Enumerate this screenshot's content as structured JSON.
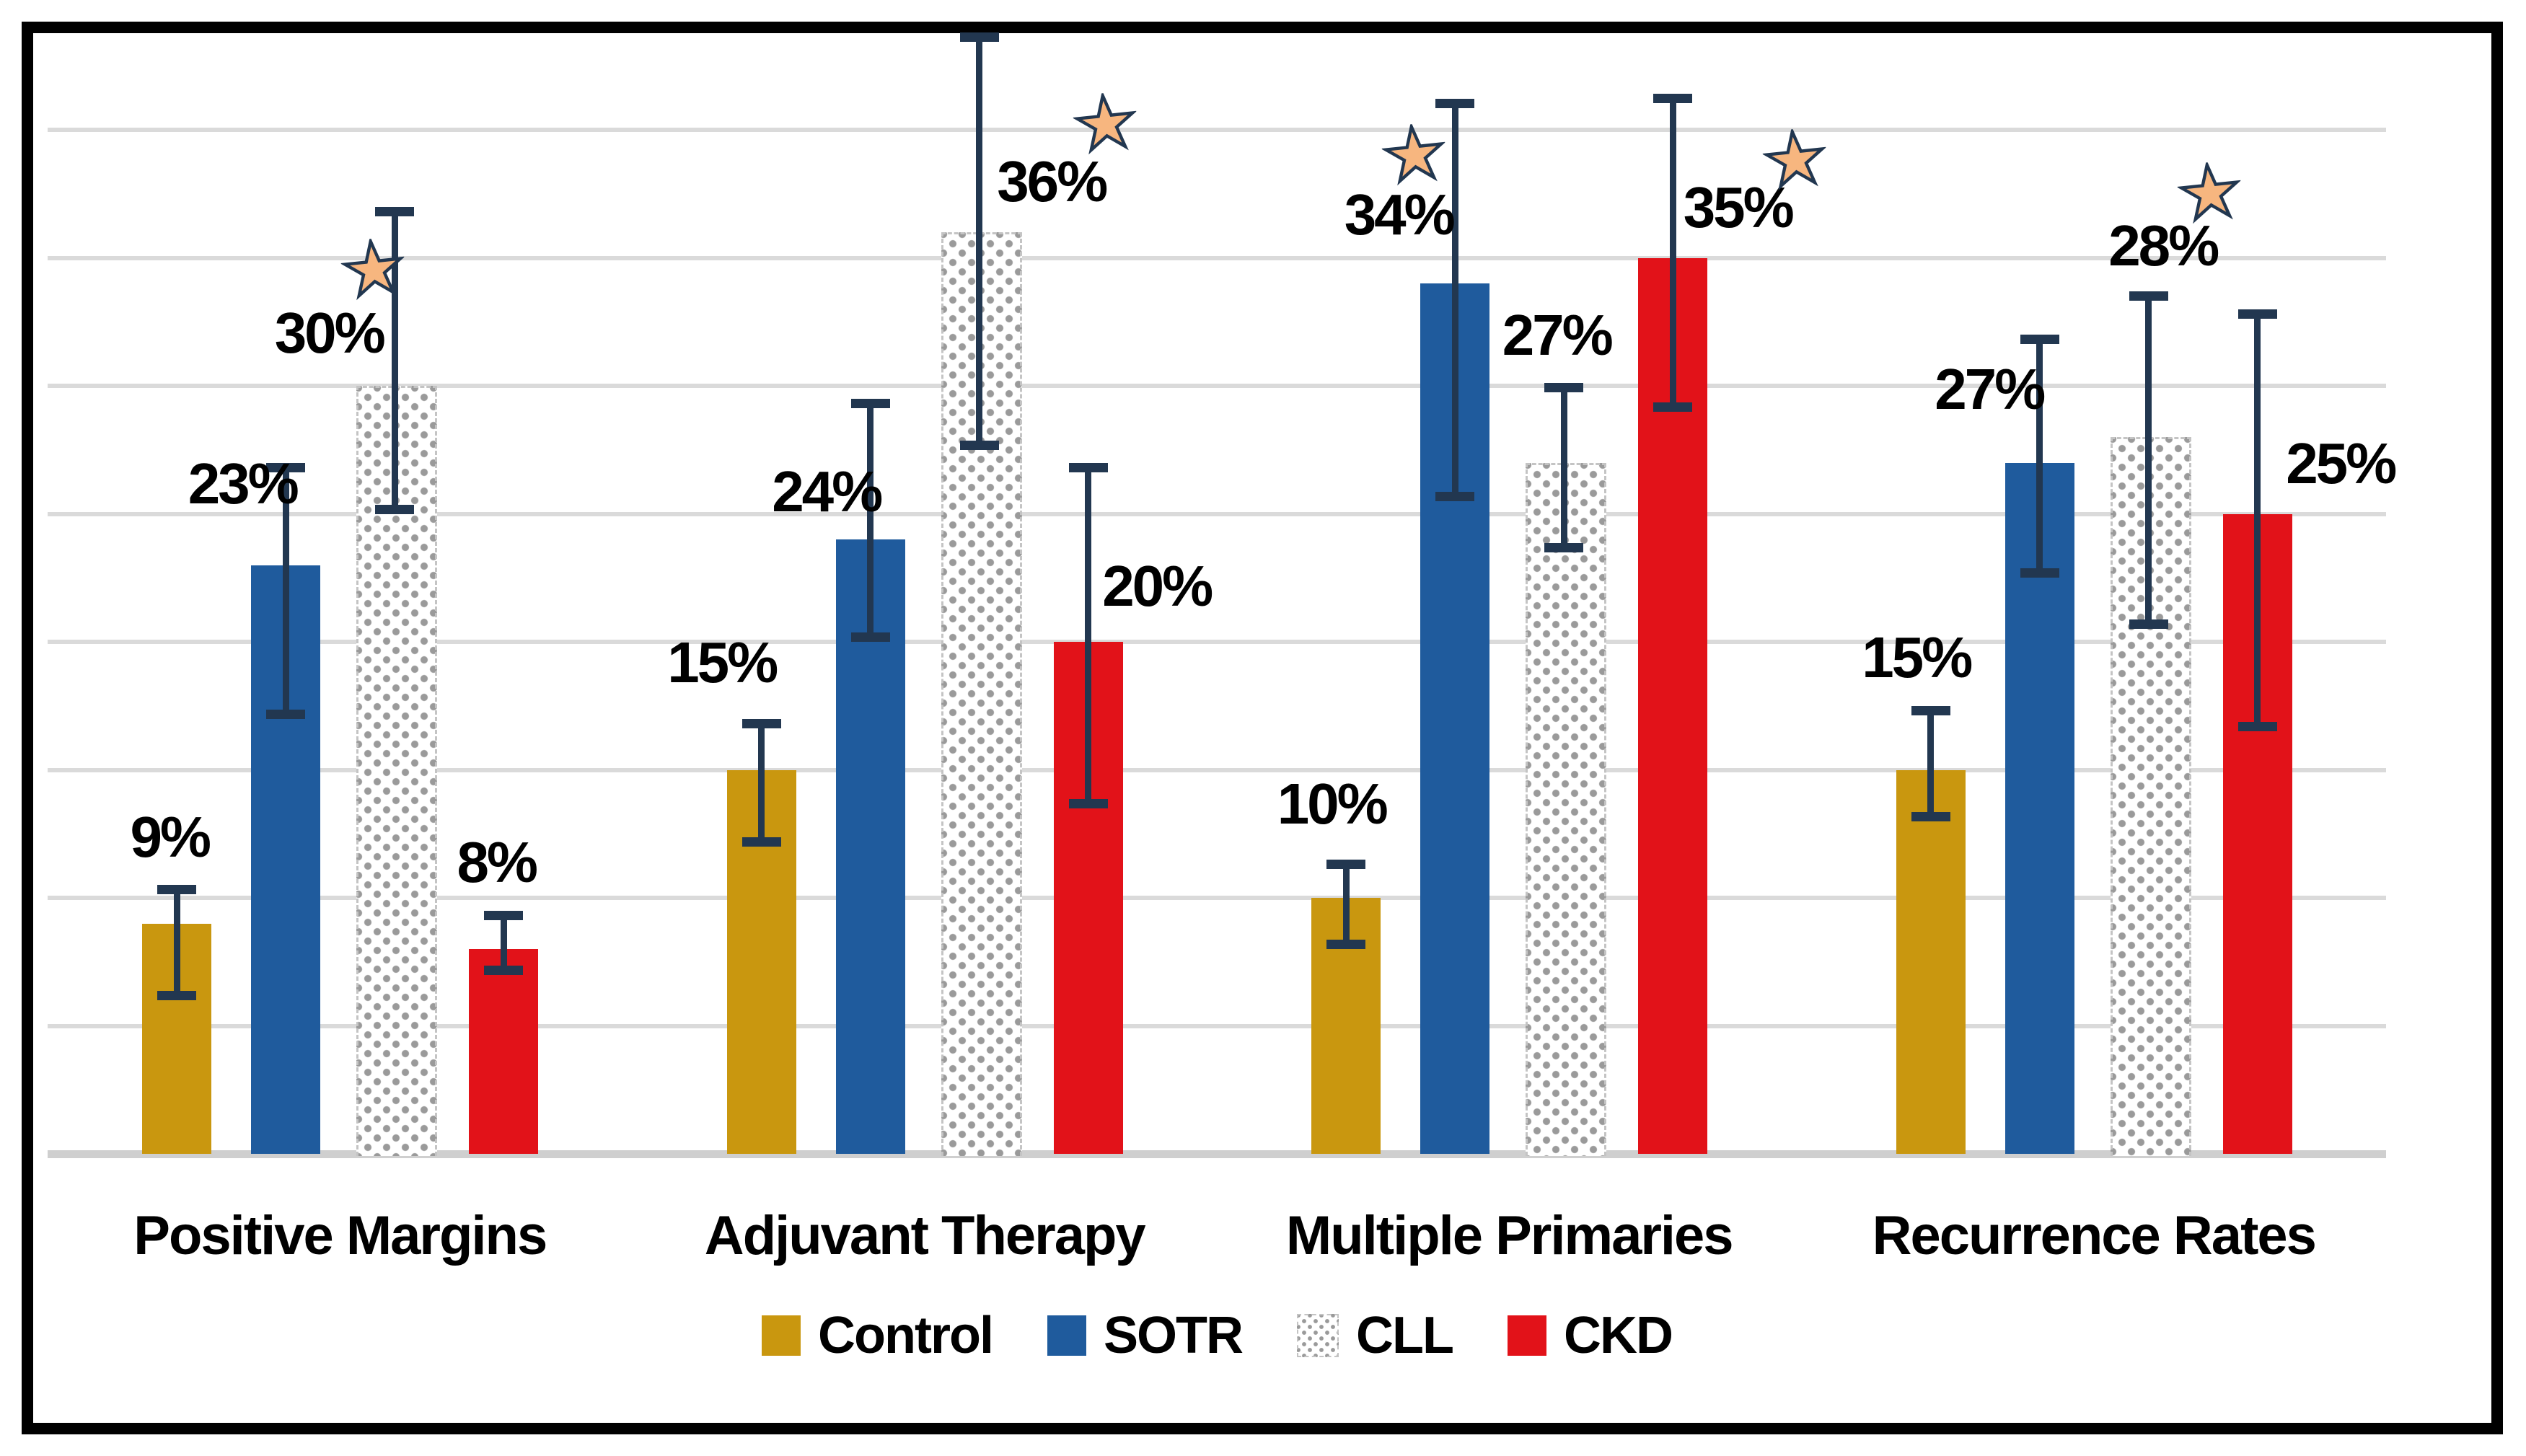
{
  "chart_data": {
    "type": "bar",
    "title": "",
    "xlabel": "",
    "ylabel": "",
    "ylim": [
      0,
      45
    ],
    "gridline_step_pct": 5,
    "grid_on": true,
    "legend_position": "bottom",
    "categories": [
      "Positive Margins",
      "Adjuvant Therapy",
      "Multiple Primaries",
      "Recurrence Rates"
    ],
    "series": [
      {
        "name": "Control",
        "color": "#C9970F",
        "pattern": false,
        "points": [
          {
            "value": 9,
            "label": "9%",
            "err_lo": 6,
            "err_hi": 10.5,
            "star": false,
            "label_dx": -10,
            "label_bottom_pct": 11.3
          },
          {
            "value": 15,
            "label": "15%",
            "err_lo": 12,
            "err_hi": 17,
            "star": false,
            "label_dx": -55,
            "label_bottom_pct": 18.1
          },
          {
            "value": 10,
            "label": "10%",
            "err_lo": 8,
            "err_hi": 11.5,
            "star": false,
            "label_dx": -20,
            "label_bottom_pct": 12.6
          },
          {
            "value": 15,
            "label": "15%",
            "err_lo": 13,
            "err_hi": 17.5,
            "star": false,
            "label_dx": -20,
            "label_bottom_pct": 18.3
          }
        ]
      },
      {
        "name": "SOTR",
        "color": "#1F5B9D",
        "pattern": false,
        "points": [
          {
            "value": 23,
            "label": "23%",
            "err_lo": 17,
            "err_hi": 27,
            "star": false,
            "label_dx": -60,
            "label_bottom_pct": 25.1
          },
          {
            "value": 24,
            "label": "24%",
            "err_lo": 20,
            "err_hi": 29.5,
            "star": false,
            "label_dx": -61,
            "label_bottom_pct": 24.8
          },
          {
            "value": 34,
            "label": "34%",
            "err_lo": 25.5,
            "err_hi": 41.2,
            "star": true,
            "star_dx": -56,
            "star_y_pct": 39.0,
            "label_dx": -78,
            "label_bottom_pct": 35.6
          },
          {
            "value": 27,
            "label": "27%",
            "err_lo": 22.5,
            "err_hi": 32,
            "star": false,
            "label_dx": -70,
            "label_bottom_pct": 28.8
          }
        ]
      },
      {
        "name": "CLL",
        "color": "#FFFFFF",
        "pattern": true,
        "pattern_dot_color": "#9A9A9A",
        "points": [
          {
            "value": 30,
            "label": "30%",
            "err_lo": 25,
            "err_hi": 37,
            "star": true,
            "star_dx": -29,
            "star_y_pct": 34.5,
            "label_dx": -91,
            "label_bottom_pct": 31.0
          },
          {
            "value": 36,
            "label": "36%",
            "err_lo": 27.5,
            "err_hi": 43.8,
            "star": true,
            "star_dx": 175,
            "star_y_pct": 40.2,
            "label_dx": 100,
            "label_bottom_pct": 36.9
          },
          {
            "value": 27,
            "label": "27%",
            "err_lo": 23.5,
            "err_hi": 30.1,
            "star": false,
            "label_dx": -10,
            "label_bottom_pct": 30.9
          },
          {
            "value": 28,
            "label": "28%",
            "err_lo": 20.5,
            "err_hi": 33.7,
            "star": true,
            "star_dx": 85,
            "star_y_pct": 37.5,
            "label_dx": 20,
            "label_bottom_pct": 34.4
          }
        ]
      },
      {
        "name": "CKD",
        "color": "#E21219",
        "pattern": false,
        "points": [
          {
            "value": 8,
            "label": "8%",
            "err_lo": 7,
            "err_hi": 9.5,
            "star": false,
            "label_dx": -10,
            "label_bottom_pct": 10.3
          },
          {
            "value": 20,
            "label": "20%",
            "err_lo": 13.5,
            "err_hi": 27,
            "star": false,
            "label_dx": 95,
            "label_bottom_pct": 21.1
          },
          {
            "value": 35,
            "label": "35%",
            "err_lo": 29,
            "err_hi": 41.4,
            "star": true,
            "star_dx": 170,
            "star_y_pct": 38.8,
            "label_dx": 90,
            "label_bottom_pct": 35.9
          },
          {
            "value": 25,
            "label": "25%",
            "err_lo": 16.5,
            "err_hi": 33,
            "star": false,
            "label_dx": 115,
            "label_bottom_pct": 25.9
          }
        ]
      }
    ],
    "style": {
      "error_bar_color": "#223750",
      "star_fill": "#F7B67F",
      "star_stroke": "#223750",
      "gridline_color": "#DADADA",
      "axis_line_color": "#CFCFCF",
      "text_color": "#000000",
      "frame_color": "#000000",
      "background": "#FFFFFF"
    }
  },
  "legend": {
    "items": [
      {
        "label": "Control"
      },
      {
        "label": "SOTR"
      },
      {
        "label": "CLL"
      },
      {
        "label": "CKD"
      }
    ]
  }
}
